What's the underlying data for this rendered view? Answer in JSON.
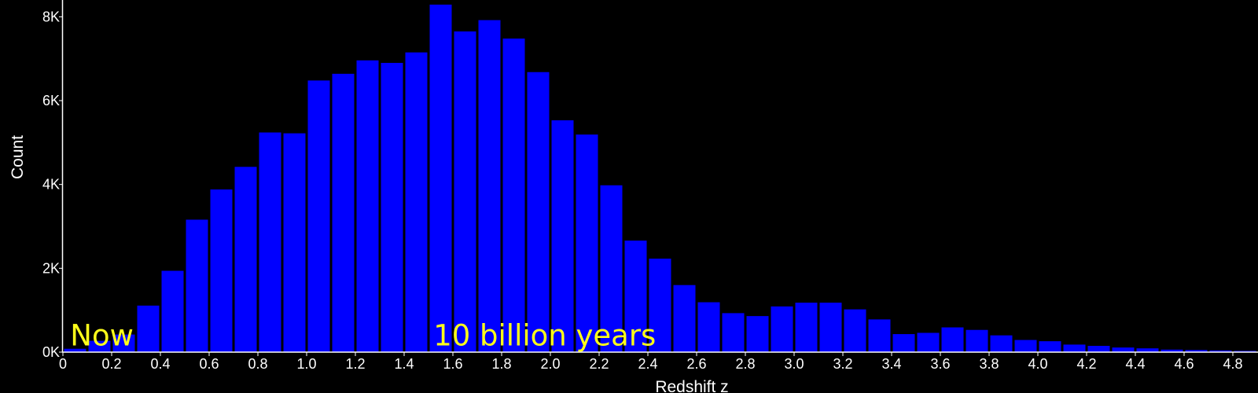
{
  "chart_data": {
    "type": "bar",
    "xlabel": "Redshift z",
    "ylabel": "Count",
    "bin_width": 0.1,
    "x_start": 0,
    "xlim": [
      0,
      4.9
    ],
    "ylim": [
      0,
      8400
    ],
    "x_ticks": [
      0,
      0.2,
      0.4,
      0.6,
      0.8,
      1.0,
      1.2,
      1.4,
      1.6,
      1.8,
      2.0,
      2.2,
      2.4,
      2.6,
      2.8,
      3.0,
      3.2,
      3.4,
      3.6,
      3.8,
      4.0,
      4.2,
      4.4,
      4.6,
      4.8
    ],
    "x_tick_labels": [
      "0",
      "0.2",
      "0.4",
      "0.6",
      "0.8",
      "1.0",
      "1.2",
      "1.4",
      "1.6",
      "1.8",
      "2.0",
      "2.2",
      "2.4",
      "2.6",
      "2.8",
      "3.0",
      "3.2",
      "3.4",
      "3.6",
      "3.8",
      "4.0",
      "4.2",
      "4.4",
      "4.6",
      "4.8"
    ],
    "y_ticks": [
      0,
      2000,
      4000,
      6000,
      8000
    ],
    "y_tick_labels": [
      "0K",
      "2K",
      "4K",
      "6K",
      "8K"
    ],
    "values": [
      80,
      270,
      420,
      1110,
      1940,
      3160,
      3880,
      4420,
      5240,
      5220,
      6480,
      6640,
      6960,
      6900,
      7150,
      8290,
      7650,
      7920,
      7480,
      6680,
      5530,
      5190,
      3980,
      2660,
      2230,
      1600,
      1190,
      930,
      860,
      1090,
      1180,
      1180,
      1020,
      780,
      430,
      460,
      590,
      530,
      400,
      290,
      260,
      180,
      150,
      110,
      90,
      60,
      50,
      40,
      30
    ],
    "bar_color": "#0000ff",
    "axis_color": "#ffffff",
    "grid": false,
    "annotations": [
      {
        "text": "Now",
        "x": 0.03,
        "y": 380
      },
      {
        "text": "10 billion years",
        "x": 1.52,
        "y": 380
      }
    ],
    "annotation_color": "#ffff1a"
  }
}
